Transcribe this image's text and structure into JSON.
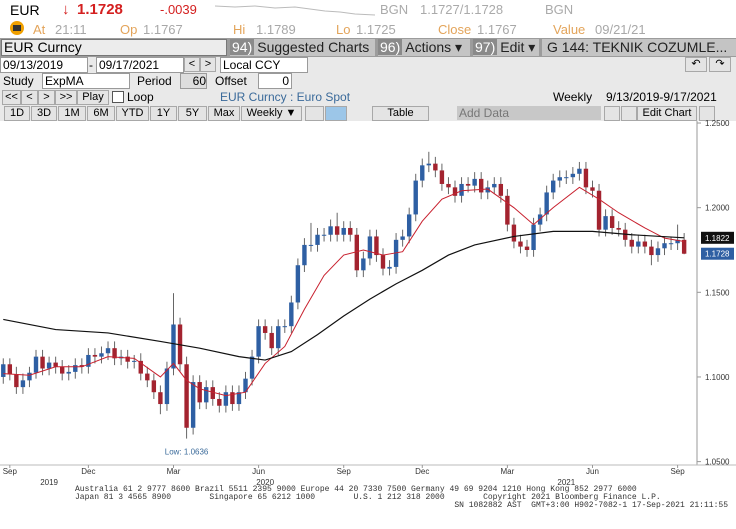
{
  "header": {
    "ticker": "EUR",
    "direction": "↓",
    "last": "1.1728",
    "change": "-.0039",
    "bid_src": "BGN",
    "quote": "1.1727/1.1728",
    "ask_src": "BGN",
    "time_label": "At",
    "time": "21:11",
    "open_label": "Op",
    "open": "1.1767",
    "high_label": "Hi",
    "high": "1.1789",
    "low_label": "Lo",
    "low": "1.1725",
    "close_label": "Close",
    "close": "1.1767",
    "value_label": "Value",
    "value_date": "09/21/21"
  },
  "toolbar": {
    "security": "EUR Curncy",
    "menus": [
      {
        "num": "94)",
        "label": "Suggested Charts"
      },
      {
        "num": "96)",
        "label": "Actions ▾"
      },
      {
        "num": "97)",
        "label": "Edit ▾"
      },
      {
        "num": "G 144:",
        "label": "TEKNIK COZUMLE..."
      }
    ],
    "start_date": "09/13/2019",
    "end_date": "09/17/2021",
    "date_nav": [
      "<",
      ">"
    ],
    "currency": "Local CCY",
    "study_label": "Study",
    "study": "ExpMA",
    "period_label": "Period",
    "period": "60",
    "offset_label": "Offset",
    "offset": "0",
    "nav_buttons": [
      "<<",
      "<",
      ">",
      ">>"
    ],
    "play": "Play",
    "loop": "Loop",
    "security_desc": "EUR Curncy : Euro Spot",
    "frequency": "Weekly",
    "range": "9/13/2019-9/17/2021",
    "periods": [
      "1D",
      "3D",
      "1M",
      "6M",
      "YTD",
      "1Y",
      "5Y",
      "Max"
    ],
    "period_select": "Weekly ▼",
    "table": "Table",
    "add_data": "Add Data",
    "edit_chart": "Edit Chart"
  },
  "chart_data": {
    "type": "candlestick",
    "up_color": "#2e5fa3",
    "down_color": "#a3232f",
    "wick_color": "#666666",
    "open": [
      1.1,
      1.1075,
      1.1015,
      1.094,
      1.098,
      1.1025,
      1.112,
      1.105,
      1.1085,
      1.106,
      1.102,
      1.103,
      1.107,
      1.106,
      1.113,
      1.112,
      1.114,
      1.117,
      1.111,
      1.112,
      1.109,
      1.1095,
      1.102,
      1.098,
      1.091,
      1.084,
      1.105,
      1.131,
      1.1075,
      1.07,
      1.097,
      1.085,
      1.094,
      1.087,
      1.083,
      1.091,
      1.084,
      1.091,
      1.099,
      1.112,
      1.13,
      1.126,
      1.117,
      1.13,
      1.13,
      1.144,
      1.166,
      1.178,
      1.178,
      1.184,
      1.184,
      1.189,
      1.184,
      1.188,
      1.184,
      1.163,
      1.17,
      1.183,
      1.172,
      1.164,
      1.165,
      1.181,
      1.183,
      1.196,
      1.216,
      1.225,
      1.226,
      1.222,
      1.214,
      1.212,
      1.207,
      1.214,
      1.213,
      1.217,
      1.209,
      1.212,
      1.214,
      1.207,
      1.19,
      1.18,
      1.177,
      1.175,
      1.19,
      1.196,
      1.209,
      1.216,
      1.218,
      1.218,
      1.22,
      1.223,
      1.212,
      1.21,
      1.187,
      1.195,
      1.188,
      1.187,
      1.181,
      1.177,
      1.18,
      1.177,
      1.172,
      1.176,
      1.179,
      1.179,
      1.181
    ],
    "high": [
      1.111,
      1.111,
      1.106,
      1.102,
      1.106,
      1.116,
      1.116,
      1.112,
      1.112,
      1.11,
      1.107,
      1.111,
      1.111,
      1.117,
      1.117,
      1.118,
      1.121,
      1.121,
      1.116,
      1.116,
      1.113,
      1.114,
      1.106,
      1.102,
      1.095,
      1.109,
      1.1495,
      1.135,
      1.112,
      1.101,
      1.101,
      1.098,
      1.098,
      1.091,
      1.095,
      1.095,
      1.095,
      1.103,
      1.116,
      1.134,
      1.134,
      1.13,
      1.134,
      1.134,
      1.148,
      1.17,
      1.182,
      1.191,
      1.188,
      1.188,
      1.193,
      1.197,
      1.192,
      1.192,
      1.188,
      1.174,
      1.187,
      1.187,
      1.176,
      1.169,
      1.185,
      1.187,
      1.2,
      1.22,
      1.229,
      1.233,
      1.23,
      1.226,
      1.218,
      1.216,
      1.218,
      1.218,
      1.221,
      1.221,
      1.216,
      1.218,
      1.218,
      1.211,
      1.194,
      1.184,
      1.181,
      1.194,
      1.2,
      1.213,
      1.22,
      1.222,
      1.222,
      1.224,
      1.227,
      1.227,
      1.216,
      1.214,
      1.199,
      1.199,
      1.192,
      1.191,
      1.185,
      1.184,
      1.184,
      1.181,
      1.18,
      1.183,
      1.183,
      1.19,
      1.185
    ],
    "low": [
      1.096,
      1.098,
      1.09,
      1.09,
      1.094,
      1.099,
      1.101,
      1.101,
      1.102,
      1.098,
      1.098,
      1.099,
      1.102,
      1.102,
      1.108,
      1.108,
      1.11,
      1.107,
      1.107,
      1.105,
      1.105,
      1.098,
      1.094,
      1.087,
      1.078,
      1.08,
      1.101,
      1.103,
      1.0636,
      1.066,
      1.081,
      1.081,
      1.083,
      1.079,
      1.079,
      1.08,
      1.08,
      1.087,
      1.095,
      1.108,
      1.122,
      1.113,
      1.113,
      1.126,
      1.126,
      1.14,
      1.162,
      1.174,
      1.174,
      1.18,
      1.18,
      1.18,
      1.18,
      1.18,
      1.159,
      1.159,
      1.166,
      1.168,
      1.16,
      1.16,
      1.161,
      1.177,
      1.179,
      1.192,
      1.212,
      1.221,
      1.218,
      1.21,
      1.208,
      1.203,
      1.203,
      1.209,
      1.209,
      1.205,
      1.205,
      1.208,
      1.203,
      1.186,
      1.176,
      1.173,
      1.171,
      1.171,
      1.186,
      1.192,
      1.205,
      1.212,
      1.214,
      1.214,
      1.216,
      1.208,
      1.206,
      1.183,
      1.183,
      1.184,
      1.183,
      1.177,
      1.173,
      1.173,
      1.173,
      1.166,
      1.168,
      1.172,
      1.175,
      1.175,
      1.1725
    ],
    "close": [
      1.1075,
      1.1015,
      1.094,
      1.098,
      1.1025,
      1.112,
      1.105,
      1.1085,
      1.106,
      1.102,
      1.103,
      1.107,
      1.106,
      1.113,
      1.112,
      1.114,
      1.117,
      1.111,
      1.112,
      1.109,
      1.1095,
      1.102,
      1.098,
      1.091,
      1.084,
      1.105,
      1.131,
      1.1075,
      1.07,
      1.097,
      1.085,
      1.094,
      1.087,
      1.083,
      1.091,
      1.084,
      1.091,
      1.099,
      1.112,
      1.13,
      1.126,
      1.117,
      1.13,
      1.13,
      1.144,
      1.166,
      1.178,
      1.178,
      1.184,
      1.184,
      1.189,
      1.184,
      1.188,
      1.184,
      1.163,
      1.17,
      1.183,
      1.172,
      1.164,
      1.165,
      1.181,
      1.183,
      1.196,
      1.216,
      1.225,
      1.226,
      1.222,
      1.214,
      1.212,
      1.207,
      1.214,
      1.213,
      1.217,
      1.209,
      1.212,
      1.214,
      1.207,
      1.19,
      1.18,
      1.177,
      1.175,
      1.19,
      1.196,
      1.209,
      1.216,
      1.218,
      1.218,
      1.22,
      1.223,
      1.212,
      1.21,
      1.187,
      1.195,
      1.188,
      1.187,
      1.181,
      1.177,
      1.18,
      1.177,
      1.172,
      1.176,
      1.179,
      1.179,
      1.181,
      1.1728
    ],
    "overlays": [
      {
        "color": "#c8202e",
        "x": [
          0,
          4,
          8,
          12,
          16,
          20,
          24,
          26,
          28,
          30,
          34,
          37,
          40,
          43,
          46,
          49,
          52,
          55,
          58,
          61,
          64,
          67,
          70,
          74,
          78,
          81,
          84,
          88,
          91,
          94,
          98,
          101,
          104
        ],
        "values": [
          1.102,
          1.101,
          1.106,
          1.106,
          1.112,
          1.111,
          1.1,
          1.108,
          1.098,
          1.093,
          1.089,
          1.091,
          1.108,
          1.118,
          1.14,
          1.16,
          1.172,
          1.175,
          1.172,
          1.174,
          1.192,
          1.205,
          1.21,
          1.211,
          1.2,
          1.19,
          1.2,
          1.212,
          1.205,
          1.197,
          1.188,
          1.182,
          1.18
        ]
      },
      {
        "color": "#111111",
        "x": [
          0,
          8,
          16,
          24,
          30,
          36,
          40,
          44,
          48,
          52,
          56,
          60,
          64,
          68,
          72,
          78,
          84,
          90,
          96,
          104
        ],
        "values": [
          1.134,
          1.128,
          1.126,
          1.121,
          1.117,
          1.112,
          1.11,
          1.115,
          1.125,
          1.136,
          1.146,
          1.155,
          1.163,
          1.172,
          1.178,
          1.183,
          1.186,
          1.186,
          1.184,
          1.1822
        ]
      }
    ],
    "tags": [
      {
        "value": 1.1822,
        "color": "#111111"
      },
      {
        "value": 1.1728,
        "color": "#2e5fa3"
      }
    ],
    "low_annotation": "Low: 1.0636",
    "xlim": [
      -0.5,
      105.2
    ],
    "xticks": [
      {
        "value": 1,
        "label": "Sep"
      },
      {
        "value": 13,
        "label": "Dec"
      },
      {
        "value": 26,
        "label": "Mar"
      },
      {
        "value": 39,
        "label": "Jun"
      },
      {
        "value": 52,
        "label": "Sep"
      },
      {
        "value": 64,
        "label": "Dec"
      },
      {
        "value": 77,
        "label": "Mar"
      },
      {
        "value": 90,
        "label": "Jun"
      },
      {
        "value": 103,
        "label": "Sep"
      }
    ],
    "year_ticks": [
      {
        "value": 7,
        "label": "2019"
      },
      {
        "value": 40,
        "label": "2020"
      },
      {
        "value": 86,
        "label": "2021"
      }
    ],
    "ylim": [
      1.048,
      1.2506
    ],
    "yticks": [
      {
        "value": 1.05,
        "label": "1.0500"
      },
      {
        "value": 1.1,
        "label": "1.1000"
      },
      {
        "value": 1.15,
        "label": "1.1500"
      },
      {
        "value": 1.2,
        "label": "1.2000"
      },
      {
        "value": 1.25,
        "label": "1.2500"
      }
    ]
  },
  "footer": [
    "Australia 61 2 9777 8600 Brazil 5511 2395 9000 Europe 44 20 7330 7500 Germany 49 69 9204 1210 Hong Kong 852 2977 6000",
    "Japan 81 3 4565 8900        Singapore 65 6212 1000        U.S. 1 212 318 2000        Copyright 2021 Bloomberg Finance L.P.",
    "SN 1082882 AST  GMT+3:00 H902-7082-1 17-Sep-2021 21:11:55"
  ]
}
